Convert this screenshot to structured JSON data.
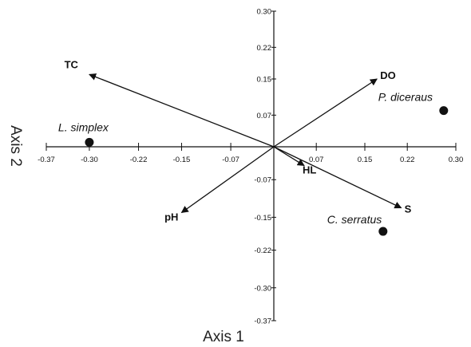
{
  "chart_data": {
    "type": "scatter",
    "xlabel": "Axis 1",
    "ylabel": "Axis 2",
    "xlim": [
      -0.37,
      0.3
    ],
    "ylim": [
      -0.37,
      0.3
    ],
    "x_ticks": [
      "-0.37",
      "-0.30",
      "-0.22",
      "-0.15",
      "-0.07",
      "0.07",
      "0.15",
      "0.22",
      "0.30"
    ],
    "x_tick_values": [
      -0.37,
      -0.3,
      -0.22,
      -0.15,
      -0.07,
      0.07,
      0.15,
      0.22,
      0.3
    ],
    "y_ticks": [
      "0.30",
      "0.22",
      "0.15",
      "0.07",
      "-0.07",
      "-0.15",
      "-0.22",
      "-0.30",
      "-0.37"
    ],
    "y_tick_values": [
      0.3,
      0.22,
      0.15,
      0.07,
      -0.07,
      -0.15,
      -0.22,
      -0.3,
      -0.37
    ],
    "species": [
      {
        "name": "L. simplex",
        "x": -0.3,
        "y": 0.01
      },
      {
        "name": "P. diceraus",
        "x": 0.28,
        "y": 0.08
      },
      {
        "name": "C. serratus",
        "x": 0.18,
        "y": -0.18
      }
    ],
    "vectors": [
      {
        "name": "TC",
        "x": -0.3,
        "y": 0.16
      },
      {
        "name": "DO",
        "x": 0.17,
        "y": 0.15
      },
      {
        "name": "HL",
        "x": 0.05,
        "y": -0.04
      },
      {
        "name": "S",
        "x": 0.21,
        "y": -0.13
      },
      {
        "name": "pH",
        "x": -0.15,
        "y": -0.14
      }
    ],
    "colors": {
      "ink": "#111111"
    }
  }
}
